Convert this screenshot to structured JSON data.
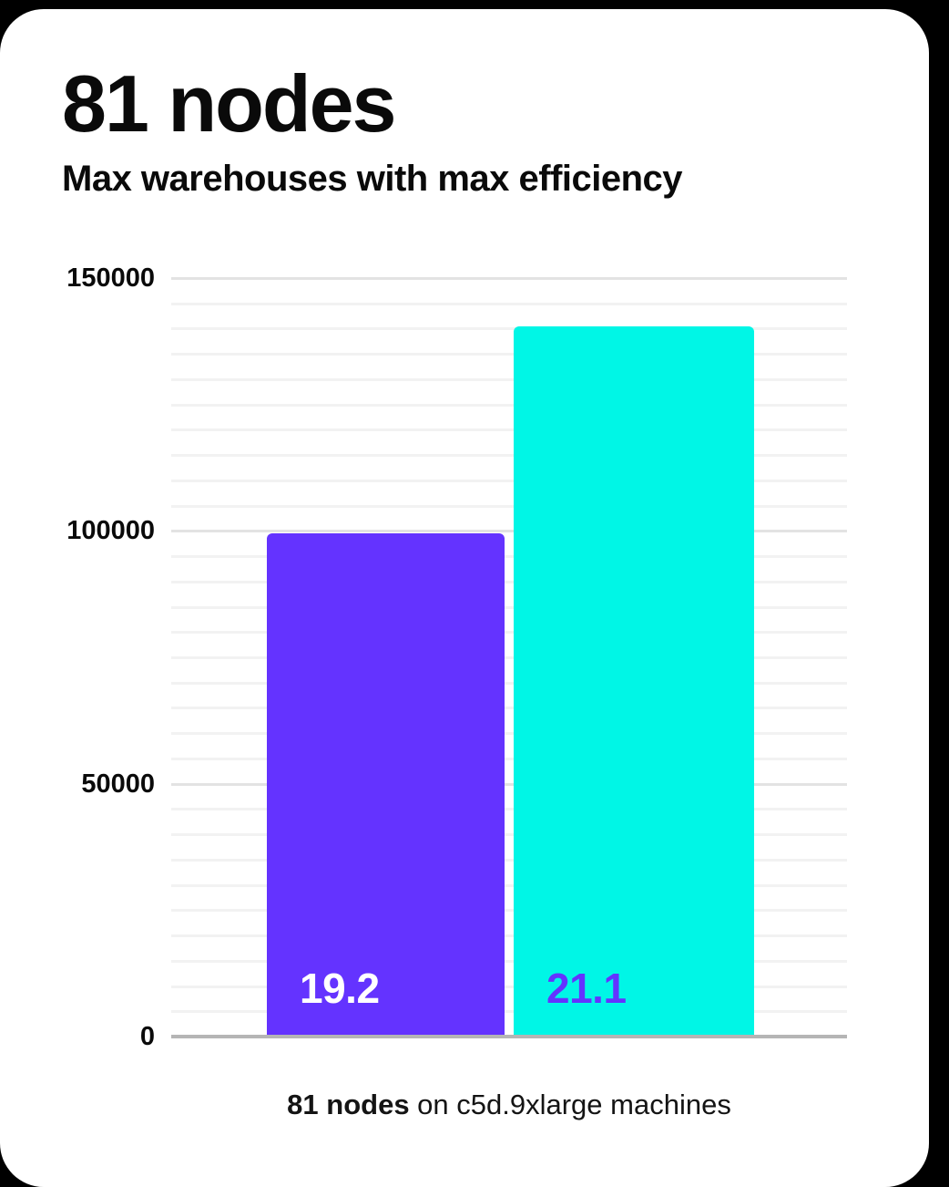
{
  "page": {
    "background": "#000000",
    "card_background": "#ffffff"
  },
  "header": {
    "title": "81 nodes",
    "subtitle": "Max warehouses with max efficiency"
  },
  "caption": {
    "highlight": "81 nodes",
    "rest": " on c5d.9xlarge machines"
  },
  "chart_data": {
    "type": "bar",
    "title": "81 nodes",
    "subtitle": "Max warehouses with max efficiency",
    "categories": [
      "19.2",
      "21.1"
    ],
    "values": [
      99500,
      140400
    ],
    "bar_labels": [
      "19.2",
      "21.1"
    ],
    "bar_colors": [
      "#6433ff",
      "#00f6e6"
    ],
    "bar_label_colors": [
      "#ffffff",
      "#6433ff"
    ],
    "ylabel": "",
    "xlabel": "81 nodes on c5d.9xlarge machines",
    "ylim": [
      0,
      150000
    ],
    "yticks": [
      150000,
      100000,
      50000,
      0
    ],
    "ytick_labels": [
      "150000",
      "100000",
      "50000",
      "0"
    ],
    "minor_grid_step": 5000,
    "major_grid_step": 50000,
    "grid": "on",
    "legend": "none",
    "grid_minor_color": "#f2f2f2",
    "grid_major_color": "#e3e3e3",
    "axis_color": "#b5b5b5"
  }
}
